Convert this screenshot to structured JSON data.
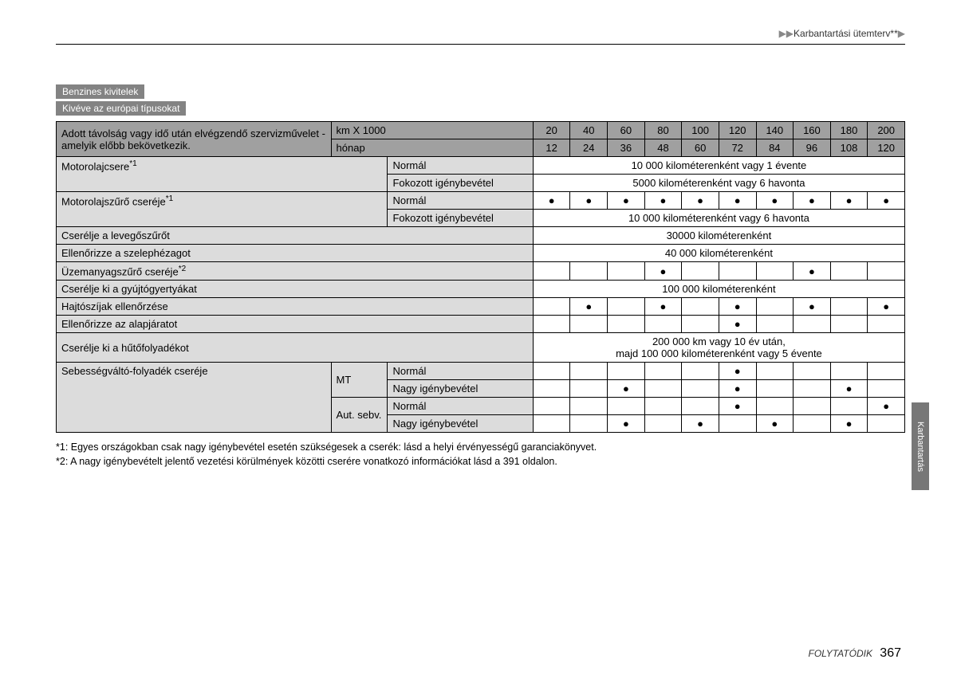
{
  "breadcrumb": "Karbantartási ütemterv*",
  "pills": [
    "Benzines kivitelek",
    "Kivéve az európai típusokat"
  ],
  "colLabels": {
    "mainLabel": "Adott távolság vagy idő után elvégzendő szervizművelet - amelyik előbb bekövetkezik.",
    "kmRow": "km X 1000",
    "monthRow": "hónap",
    "km": [
      "20",
      "40",
      "60",
      "80",
      "100",
      "120",
      "140",
      "160",
      "180",
      "200"
    ],
    "month": [
      "12",
      "24",
      "36",
      "48",
      "60",
      "72",
      "84",
      "96",
      "108",
      "120"
    ]
  },
  "rows": [
    {
      "label": "Motorolajcsere",
      "sup": "*1",
      "subrows": [
        {
          "cond": "Normál",
          "span": "10 000 kilométerenként vagy 1 évente"
        },
        {
          "cond": "Fokozott igénybevétel",
          "span": "5000 kilométerenként vagy 6 havonta"
        }
      ]
    },
    {
      "label": "Motorolajszűrő cseréje",
      "sup": "*1",
      "subrows": [
        {
          "cond": "Normál",
          "dots": [
            1,
            1,
            1,
            1,
            1,
            1,
            1,
            1,
            1,
            1
          ]
        },
        {
          "cond": "Fokozott igénybevétel",
          "span": "10 000 kilométerenként vagy 6 havonta"
        }
      ]
    },
    {
      "label": "Cserélje a levegőszűrőt",
      "span": "30000 kilométerenként"
    },
    {
      "label": "Ellenőrizze a szelephézagot",
      "span": "40 000 kilométerenként"
    },
    {
      "label": "Üzemanyagszűrő cseréje",
      "sup": "*2",
      "dots": [
        0,
        0,
        0,
        1,
        0,
        0,
        0,
        1,
        0,
        0
      ]
    },
    {
      "label": "Cserélje ki a gyújtógyertyákat",
      "span": "100 000 kilométerenként"
    },
    {
      "label": "Hajtószíjak ellenőrzése",
      "dots": [
        0,
        1,
        0,
        1,
        0,
        1,
        0,
        1,
        0,
        1
      ]
    },
    {
      "label": "Ellenőrizze az alapjáratot",
      "dots": [
        0,
        0,
        0,
        0,
        0,
        1,
        0,
        0,
        0,
        0
      ]
    },
    {
      "label": "Cserélje ki a hűtőfolyadékot",
      "span": "200 000 km vagy 10 év után,\nmajd 100 000 kilométerenként vagy 5 évente"
    },
    {
      "label": "Sebességváltó-folyadék cseréje",
      "groups": [
        {
          "g": "MT",
          "subrows": [
            {
              "cond": "Normál",
              "dots": [
                0,
                0,
                0,
                0,
                0,
                1,
                0,
                0,
                0,
                0
              ]
            },
            {
              "cond": "Nagy igénybevétel",
              "dots": [
                0,
                0,
                1,
                0,
                0,
                1,
                0,
                0,
                1,
                0
              ]
            }
          ]
        },
        {
          "g": "Aut. sebv.",
          "subrows": [
            {
              "cond": "Normál",
              "dots": [
                0,
                0,
                0,
                0,
                0,
                1,
                0,
                0,
                0,
                1
              ]
            },
            {
              "cond": "Nagy igénybevétel",
              "dots": [
                0,
                0,
                1,
                0,
                1,
                0,
                1,
                0,
                1,
                0
              ]
            }
          ]
        }
      ]
    }
  ],
  "footnotes": [
    "*1: Egyes országokban csak nagy igénybevétel esetén szükségesek a cserék: lásd a helyi érvényességű garanciakönyvet.",
    "*2: A nagy igénybevételt jelentő vezetési körülmények közötti cserére vonatkozó információkat lásd a 391 oldalon."
  ],
  "sideTab": "Karbantartás",
  "cont": "FOLYTATÓDIK",
  "page": "367"
}
